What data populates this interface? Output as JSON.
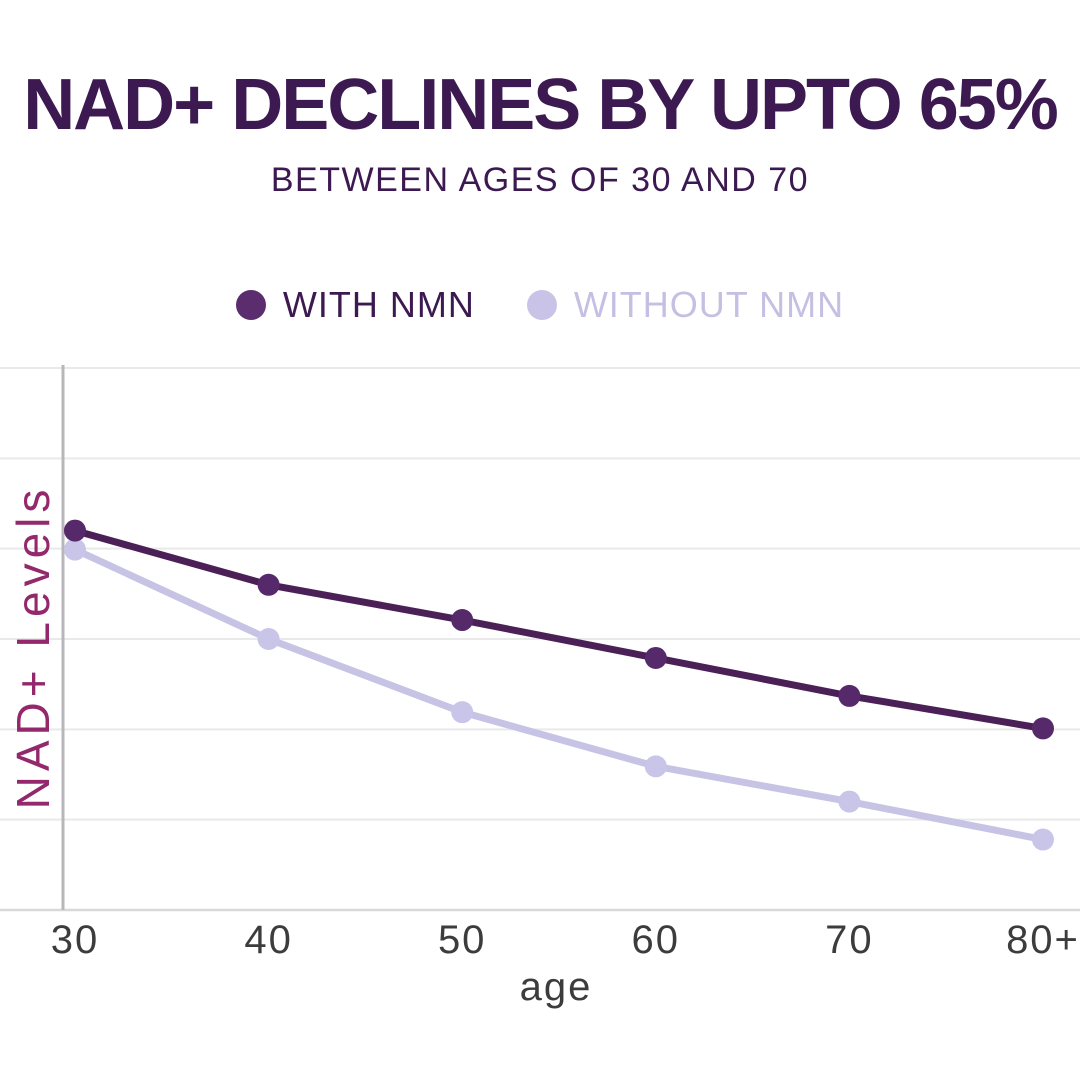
{
  "header": {
    "title": "NAD+ DECLINES BY UPTO 65%",
    "subtitle": "BETWEEN AGES OF 30 AND 70"
  },
  "legend": {
    "items": [
      {
        "label": "WITH NMN",
        "dot_color": "#5c2d6e",
        "text_color": "#3c1950"
      },
      {
        "label": "WITHOUT NMN",
        "dot_color": "#c9c4e7",
        "text_color": "#c5c0e3"
      }
    ]
  },
  "chart_data": {
    "type": "line",
    "title": "NAD+ DECLINES BY UPTO 65%",
    "subtitle": "BETWEEN AGES OF 30 AND 70",
    "categories": [
      "30",
      "40",
      "50",
      "60",
      "70",
      "80+"
    ],
    "xlabel": "age",
    "ylabel": "NAD+ Levels",
    "ylim": [
      0,
      100
    ],
    "grid": "horizontal",
    "gridline_divisions": 6,
    "legend_position": "top",
    "y_tick_labels_visible": false,
    "series": [
      {
        "name": "WITH NMN",
        "line_color": "#4b2057",
        "dot_color": "#56296a",
        "values": [
          70,
          60,
          53.5,
          46.5,
          39.5,
          33.5
        ]
      },
      {
        "name": "WITHOUT NMN",
        "line_color": "#c7c3e5",
        "dot_color": "#c9c5e8",
        "values": [
          66.5,
          50,
          36.5,
          26.5,
          20,
          13
        ]
      }
    ]
  },
  "colors": {
    "background": "#ffffff",
    "title": "#3c1950",
    "ylabel": "#93286d",
    "tick": "#3c3c3c",
    "gridline": "#e9e9e9",
    "axis_baseline": "#d8d8d8",
    "y_axis_line": "#b8b5bb"
  }
}
